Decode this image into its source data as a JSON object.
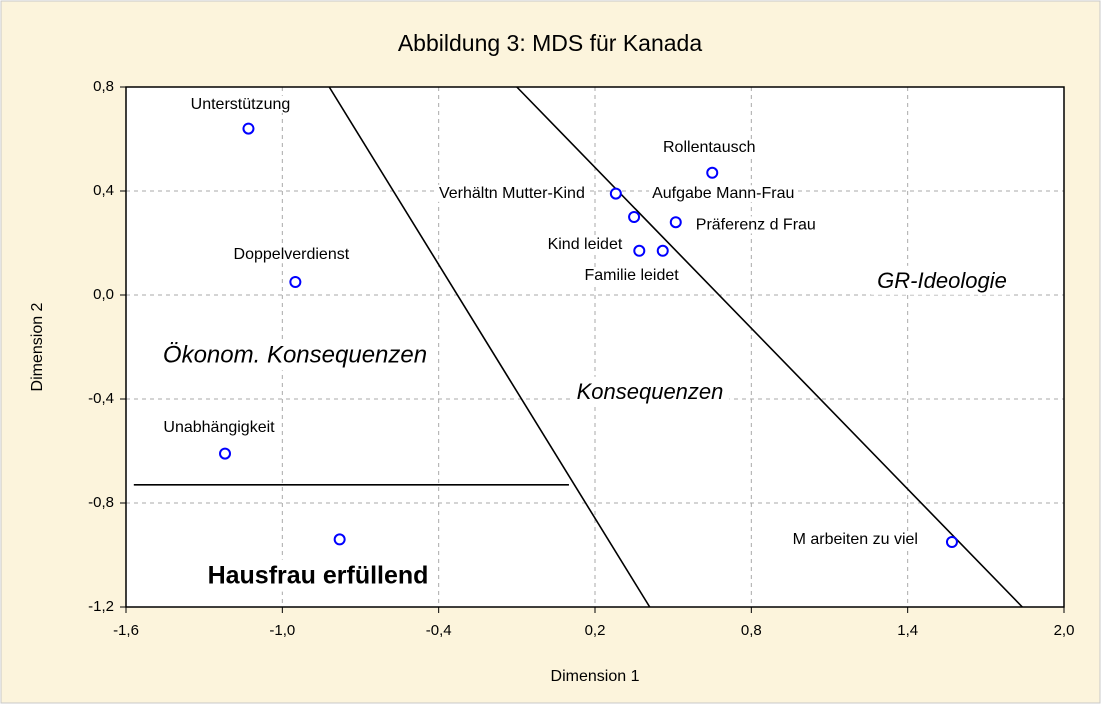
{
  "chart_data": {
    "type": "scatter",
    "title": "Abbildung 3: MDS für Kanada",
    "x_label": "Dimension 1",
    "y_label": "Dimension 2",
    "labels": [
      "Unterstützung",
      "Doppelverdienst",
      "Unabhängigkeit",
      null,
      "Rollentausch",
      "Verhältn Mutter-Kind",
      "Aufgabe Mann-Frau",
      "Präferenz d Frau",
      "Kind leidet",
      "Familie leidet",
      "M arbeiten zu viel"
    ],
    "x": [
      -1.13,
      -0.95,
      -1.22,
      -0.78,
      0.65,
      0.28,
      0.35,
      0.51,
      0.37,
      0.46,
      1.57
    ],
    "y": [
      0.64,
      0.05,
      -0.61,
      -0.94,
      0.47,
      0.39,
      0.3,
      0.28,
      0.17,
      0.17,
      -0.95
    ],
    "color": "#0000ff",
    "xlim": [
      -1.6,
      2.0
    ],
    "xticks": [
      {
        "value": -1.6,
        "label": "-1,6"
      },
      {
        "value": -1.0,
        "label": "-1,0"
      },
      {
        "value": -0.4,
        "label": "-0,4"
      },
      {
        "value": 0.2,
        "label": "0,2"
      },
      {
        "value": 0.8,
        "label": "0,8"
      },
      {
        "value": 1.4,
        "label": "1,4"
      },
      {
        "value": 2.0,
        "label": "2,0"
      }
    ],
    "ylim": [
      -1.2,
      0.8
    ],
    "yticks": [
      {
        "value": -1.2,
        "label": "-1,2"
      },
      {
        "value": -0.8,
        "label": "-0,8"
      },
      {
        "value": -0.4,
        "label": "-0,4"
      },
      {
        "value": 0.0,
        "label": "0,0"
      },
      {
        "value": 0.4,
        "label": "0,4"
      },
      {
        "value": 0.8,
        "label": "0,8"
      }
    ],
    "grid": true,
    "region_lines": [
      {
        "x": [
          -0.82,
          0.41
        ],
        "y": [
          0.8,
          -1.2
        ]
      },
      {
        "x": [
          -0.1,
          1.84
        ],
        "y": [
          0.8,
          -1.2
        ]
      },
      {
        "x": [
          -1.57,
          0.1
        ],
        "y": [
          -0.73,
          -0.73
        ]
      }
    ],
    "annotations": [
      "Ökonom. Konsequenzen",
      "Konsequenzen",
      "GR-Ideologie",
      "Hausfrau erfüllend"
    ]
  }
}
